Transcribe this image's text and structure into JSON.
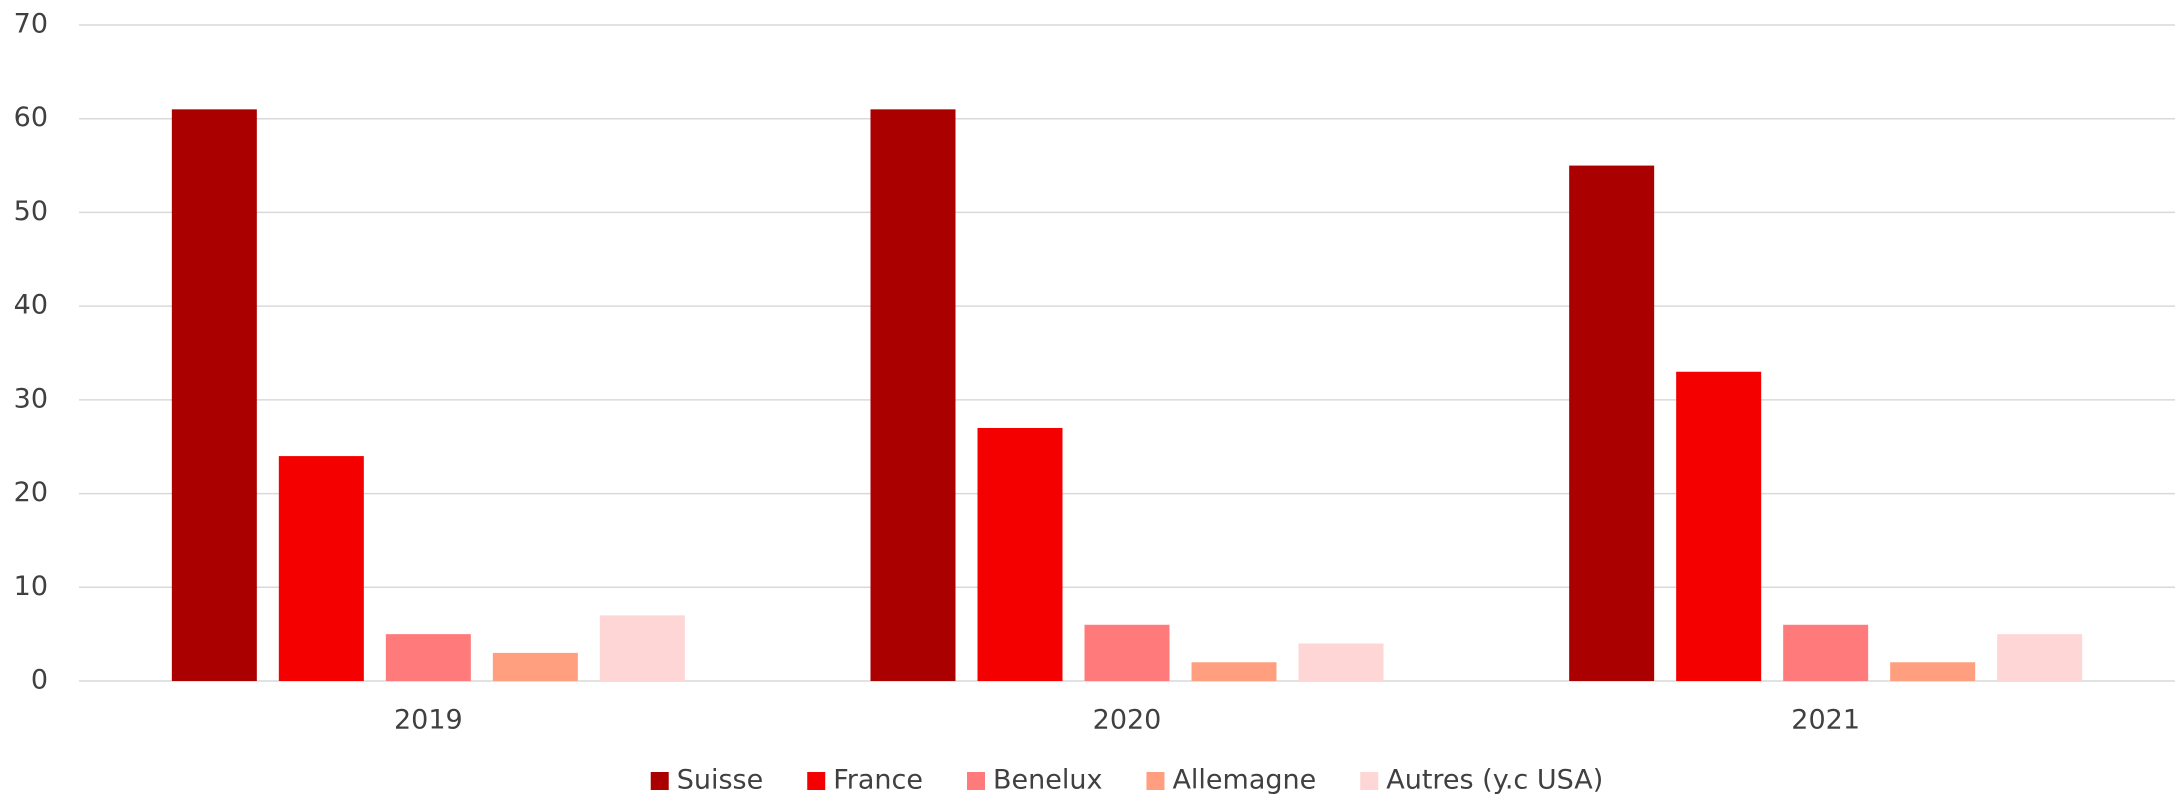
{
  "chart_data": {
    "type": "bar",
    "categories": [
      "2019",
      "2020",
      "2021"
    ],
    "series": [
      {
        "name": "Suisse",
        "color": "#aa0000",
        "values": [
          61,
          61,
          55
        ]
      },
      {
        "name": "France",
        "color": "#f50000",
        "values": [
          24,
          27,
          33
        ]
      },
      {
        "name": "Benelux",
        "color": "#ff7b7b",
        "values": [
          5,
          6,
          6
        ]
      },
      {
        "name": "Allemagne",
        "color": "#ff9f80",
        "values": [
          3,
          2,
          2
        ]
      },
      {
        "name": "Autres (y.c USA)",
        "color": "#ffd6d6",
        "values": [
          7,
          4,
          5
        ]
      }
    ],
    "ylim": [
      0,
      70
    ],
    "yticks": [
      0,
      10,
      20,
      30,
      40,
      50,
      60,
      70
    ],
    "grid": true,
    "legend": "bottom"
  }
}
